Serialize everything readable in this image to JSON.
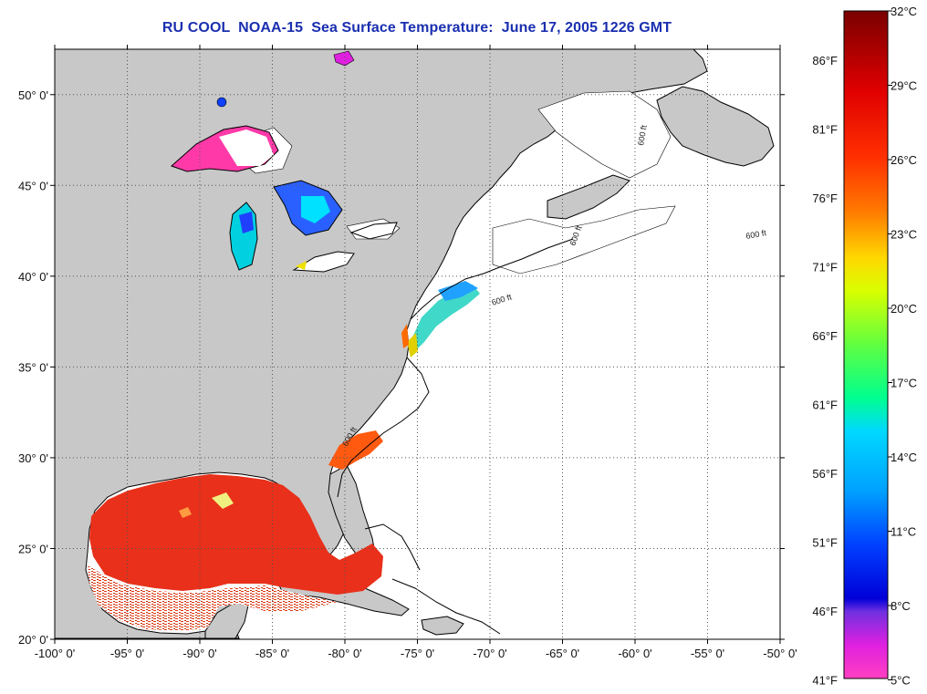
{
  "title": "RU COOL  NOAA-15  Sea Surface Temperature:  June 17, 2005 1226 GMT",
  "map": {
    "lon_range": [
      -100,
      -50
    ],
    "lat_range": [
      20,
      52.5
    ],
    "lon_ticks": [
      "-100° 0'",
      "-95° 0'",
      "-90° 0'",
      "-85° 0'",
      "-80° 0'",
      "-75° 0'",
      "-70° 0'",
      "-65° 0'",
      "-60° 0'",
      "-55° 0'",
      "-50° 0'"
    ],
    "lat_ticks": [
      "20° 0'",
      "25° 0'",
      "30° 0'",
      "35° 0'",
      "40° 0'",
      "45° 0'",
      "50° 0'"
    ],
    "grid": "dotted",
    "land_color": "#c8c8c8",
    "isobath_label": "600 ft"
  },
  "colorbar": {
    "fahrenheit_labels": [
      "86°F",
      "81°F",
      "76°F",
      "71°F",
      "66°F",
      "61°F",
      "56°F",
      "51°F",
      "46°F",
      "41°F"
    ],
    "celsius_labels": [
      "32°C",
      "29°C",
      "26°C",
      "23°C",
      "20°C",
      "17°C",
      "14°C",
      "11°C",
      "8°C",
      "5°C"
    ],
    "colors": [
      "#7a0000",
      "#e00000",
      "#ff3000",
      "#ff7a00",
      "#ffd800",
      "#d8ff00",
      "#60ff40",
      "#00ff90",
      "#00d8ff",
      "#00a0ff",
      "#0040ff",
      "#0000d8",
      "#8a2be2",
      "#e020e0",
      "#ff40c0"
    ]
  }
}
